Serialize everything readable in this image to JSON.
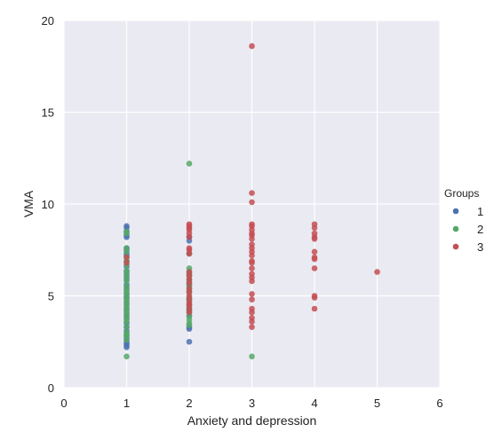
{
  "chart_data": {
    "type": "scatter",
    "title": "",
    "xlabel": "Anxiety and depression",
    "ylabel": "VMA",
    "xlim": [
      0,
      6
    ],
    "ylim": [
      0,
      20
    ],
    "xticks": [
      "0",
      "1",
      "2",
      "3",
      "4",
      "5",
      "6"
    ],
    "yticks": [
      "0",
      "5",
      "10",
      "15",
      "20"
    ],
    "grid": true,
    "legend": {
      "title": "Groups",
      "position": "right",
      "entries": [
        "1",
        "2",
        "3"
      ]
    },
    "series": [
      {
        "name": "1",
        "color": "#4c72b0",
        "points": [
          [
            1,
            8.8
          ],
          [
            1,
            8.7
          ],
          [
            1,
            8.5
          ],
          [
            1,
            8.3
          ],
          [
            1,
            8.2
          ],
          [
            1,
            7.6
          ],
          [
            1,
            7.5
          ],
          [
            1,
            7.3
          ],
          [
            1,
            7.2
          ],
          [
            1,
            6.9
          ],
          [
            1,
            6.6
          ],
          [
            1,
            6.3
          ],
          [
            1,
            6.1
          ],
          [
            1,
            5.9
          ],
          [
            1,
            5.6
          ],
          [
            1,
            5.4
          ],
          [
            1,
            5.1
          ],
          [
            1,
            4.9
          ],
          [
            1,
            4.6
          ],
          [
            1,
            4.3
          ],
          [
            1,
            4.0
          ],
          [
            1,
            3.8
          ],
          [
            1,
            3.5
          ],
          [
            1,
            3.3
          ],
          [
            1,
            3.1
          ],
          [
            1,
            2.9
          ],
          [
            1,
            2.7
          ],
          [
            1,
            2.5
          ],
          [
            1,
            2.4
          ],
          [
            1,
            2.3
          ],
          [
            1,
            2.2
          ],
          [
            2,
            8.2
          ],
          [
            2,
            8.0
          ],
          [
            2,
            7.3
          ],
          [
            2,
            6.1
          ],
          [
            2,
            5.6
          ],
          [
            2,
            4.8
          ],
          [
            2,
            4.5
          ],
          [
            2,
            4.2
          ],
          [
            2,
            3.9
          ],
          [
            2,
            3.3
          ],
          [
            2,
            3.2
          ],
          [
            2,
            2.5
          ]
        ]
      },
      {
        "name": "2",
        "color": "#55a868",
        "points": [
          [
            1,
            8.5
          ],
          [
            1,
            8.4
          ],
          [
            1,
            7.6
          ],
          [
            1,
            7.4
          ],
          [
            1,
            7.1
          ],
          [
            1,
            6.9
          ],
          [
            1,
            6.7
          ],
          [
            1,
            6.4
          ],
          [
            1,
            6.2
          ],
          [
            1,
            6.0
          ],
          [
            1,
            5.8
          ],
          [
            1,
            5.5
          ],
          [
            1,
            5.3
          ],
          [
            1,
            5.2
          ],
          [
            1,
            5.0
          ],
          [
            1,
            4.8
          ],
          [
            1,
            4.7
          ],
          [
            1,
            4.5
          ],
          [
            1,
            4.4
          ],
          [
            1,
            4.2
          ],
          [
            1,
            4.1
          ],
          [
            1,
            3.9
          ],
          [
            1,
            3.7
          ],
          [
            1,
            3.6
          ],
          [
            1,
            3.3
          ],
          [
            1,
            3.0
          ],
          [
            1,
            2.9
          ],
          [
            1,
            2.8
          ],
          [
            1,
            2.6
          ],
          [
            1,
            1.7
          ],
          [
            2,
            12.2
          ],
          [
            2,
            7.3
          ],
          [
            2,
            6.5
          ],
          [
            2,
            6.3
          ],
          [
            2,
            6.2
          ],
          [
            2,
            5.9
          ],
          [
            2,
            5.8
          ],
          [
            2,
            5.7
          ],
          [
            2,
            5.5
          ],
          [
            2,
            5.3
          ],
          [
            2,
            5.2
          ],
          [
            2,
            4.9
          ],
          [
            2,
            4.7
          ],
          [
            2,
            4.4
          ],
          [
            2,
            4.3
          ],
          [
            2,
            4.1
          ],
          [
            2,
            3.9
          ],
          [
            2,
            3.7
          ],
          [
            2,
            3.5
          ],
          [
            2,
            3.4
          ],
          [
            3,
            1.7
          ]
        ]
      },
      {
        "name": "3",
        "color": "#c44e52",
        "points": [
          [
            1,
            7.1
          ],
          [
            1,
            6.8
          ],
          [
            2,
            8.9
          ],
          [
            2,
            8.8
          ],
          [
            2,
            8.7
          ],
          [
            2,
            8.6
          ],
          [
            2,
            8.4
          ],
          [
            2,
            8.2
          ],
          [
            2,
            7.6
          ],
          [
            2,
            7.5
          ],
          [
            2,
            7.3
          ],
          [
            2,
            6.3
          ],
          [
            2,
            6.1
          ],
          [
            2,
            5.9
          ],
          [
            2,
            5.7
          ],
          [
            2,
            5.4
          ],
          [
            2,
            5.2
          ],
          [
            2,
            5.0
          ],
          [
            2,
            4.8
          ],
          [
            2,
            4.6
          ],
          [
            2,
            4.5
          ],
          [
            2,
            4.3
          ],
          [
            2,
            4.1
          ],
          [
            3,
            18.6
          ],
          [
            3,
            10.6
          ],
          [
            3,
            10.1
          ],
          [
            3,
            8.9
          ],
          [
            3,
            8.8
          ],
          [
            3,
            8.6
          ],
          [
            3,
            8.4
          ],
          [
            3,
            8.3
          ],
          [
            3,
            8.1
          ],
          [
            3,
            7.8
          ],
          [
            3,
            7.6
          ],
          [
            3,
            7.4
          ],
          [
            3,
            7.2
          ],
          [
            3,
            6.9
          ],
          [
            3,
            6.8
          ],
          [
            3,
            6.5
          ],
          [
            3,
            6.2
          ],
          [
            3,
            6.0
          ],
          [
            3,
            5.8
          ],
          [
            3,
            5.1
          ],
          [
            3,
            4.8
          ],
          [
            3,
            4.3
          ],
          [
            3,
            4.1
          ],
          [
            3,
            3.8
          ],
          [
            3,
            3.6
          ],
          [
            3,
            3.3
          ],
          [
            4,
            8.9
          ],
          [
            4,
            8.7
          ],
          [
            4,
            8.4
          ],
          [
            4,
            8.2
          ],
          [
            4,
            8.1
          ],
          [
            4,
            7.4
          ],
          [
            4,
            7.1
          ],
          [
            4,
            7.0
          ],
          [
            4,
            6.5
          ],
          [
            4,
            5.0
          ],
          [
            4,
            4.9
          ],
          [
            4,
            4.3
          ],
          [
            5,
            6.3
          ]
        ]
      }
    ]
  }
}
